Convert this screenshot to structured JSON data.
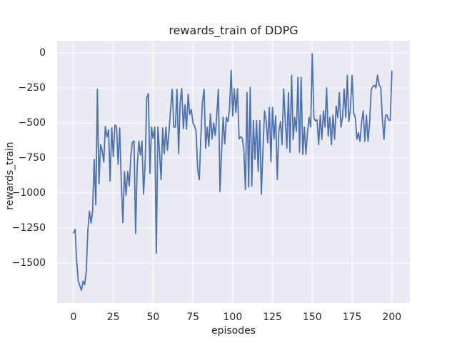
{
  "style": {
    "figure_bg": "#ffffff",
    "axes_bg": "#eaeaf2",
    "grid_color": "#ffffff",
    "text_color": "#262626",
    "line_color": "#4c72b0",
    "line_width": 1.8
  },
  "chart_data": {
    "type": "line",
    "title": "rewards_train of DDPG",
    "xlabel": "episodes",
    "ylabel": "rewards_train",
    "grid": true,
    "legend": false,
    "xlim": [
      -10.3,
      211.3
    ],
    "ylim": [
      -1786,
      87
    ],
    "x_ticks": [
      0,
      25,
      50,
      75,
      100,
      125,
      150,
      175,
      200
    ],
    "x_tick_labels": [
      "0",
      "25",
      "50",
      "75",
      "100",
      "125",
      "150",
      "175",
      "200"
    ],
    "y_ticks": [
      0,
      -250,
      -500,
      -750,
      -1000,
      -1250,
      -1500
    ],
    "y_tick_labels": [
      "0",
      "−250",
      "−500",
      "−750",
      "−1000",
      "−1250",
      "−1500"
    ],
    "x_start": 0,
    "x_step": 1,
    "series": [
      {
        "name": "rewards_train",
        "color": "#4c72b0",
        "values": [
          -1285,
          -1260,
          -1490,
          -1630,
          -1665,
          -1695,
          -1630,
          -1655,
          -1560,
          -1270,
          -1130,
          -1215,
          -1130,
          -760,
          -1085,
          -260,
          -935,
          -655,
          -700,
          -780,
          -525,
          -600,
          -550,
          -915,
          -535,
          -740,
          -516,
          -525,
          -796,
          -535,
          -915,
          -1212,
          -847,
          -1017,
          -847,
          -949,
          -740,
          -637,
          -630,
          -1290,
          -820,
          -630,
          -730,
          -630,
          -1010,
          -780,
          -320,
          -290,
          -860,
          -530,
          -610,
          -530,
          -1430,
          -530,
          -700,
          -905,
          -535,
          -720,
          -530,
          -695,
          -560,
          -400,
          -260,
          -530,
          -530,
          -260,
          -720,
          -350,
          -253,
          -540,
          -371,
          -545,
          -295,
          -440,
          -405,
          -500,
          -520,
          -560,
          -830,
          -905,
          -600,
          -350,
          -260,
          -680,
          -530,
          -665,
          -435,
          -615,
          -500,
          -590,
          -440,
          -260,
          -990,
          -700,
          -460,
          -650,
          -460,
          -490,
          -400,
          -125,
          -450,
          -255,
          -425,
          -255,
          -613,
          -600,
          -610,
          -690,
          -975,
          -283,
          -957,
          -245,
          -950,
          -483,
          -760,
          -483,
          -845,
          -483,
          -1010,
          -700,
          -414,
          -483,
          -642,
          -389,
          -777,
          -389,
          -615,
          -450,
          -905,
          -560,
          -490,
          -655,
          -258,
          -480,
          -680,
          -283,
          -710,
          -160,
          -617,
          -460,
          -560,
          -175,
          -710,
          -175,
          -725,
          -530,
          -725,
          -560,
          -460,
          -530,
          -5,
          -462,
          -485,
          -478,
          -655,
          -445,
          -617,
          -413,
          -530,
          -250,
          -595,
          -460,
          -655,
          -445,
          -617,
          -380,
          -462,
          -283,
          -530,
          -460,
          -258,
          -460,
          -160,
          -490,
          -395,
          -160,
          -430,
          -460,
          -617,
          -570,
          -632,
          -490,
          -413,
          -632,
          -445,
          -632,
          -500,
          -265,
          -240,
          -230,
          -250,
          -158,
          -230,
          -245,
          -462,
          -617,
          -445,
          -445,
          -480,
          -480,
          -130
        ]
      }
    ]
  }
}
